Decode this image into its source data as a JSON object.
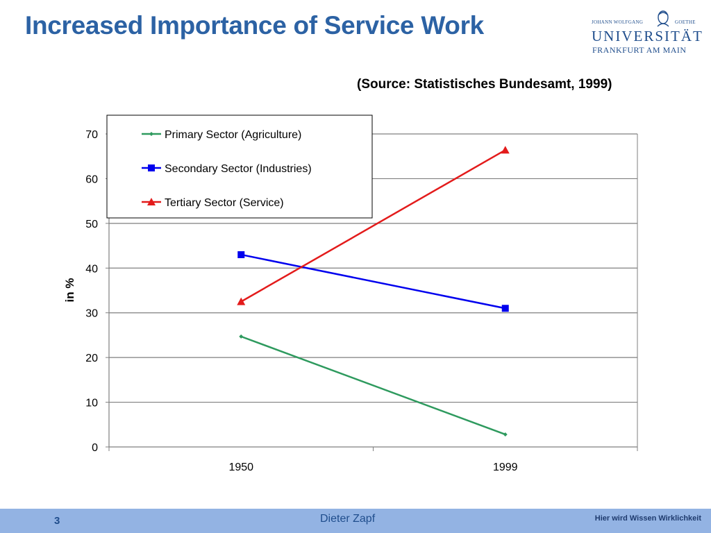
{
  "slide": {
    "title": "Increased Importance of Service Work",
    "source": "(Source: Statistisches Bundesamt, 1999)"
  },
  "logo": {
    "line1_left": "JOHANN WOLFGANG",
    "line1_right": "GOETHE",
    "line2": "UNIVERSITÄT",
    "line3": "FRANKFURT AM MAIN"
  },
  "footer": {
    "page_number": "3",
    "author": "Dieter Zapf",
    "slogan": "Hier wird Wissen Wirklichkeit"
  },
  "chart_data": {
    "type": "line",
    "categories": [
      "1950",
      "1999"
    ],
    "series": [
      {
        "name": "Primary Sector (Agriculture)",
        "values": [
          24.7,
          2.8
        ],
        "color": "#2e9a5e",
        "marker": "diamond"
      },
      {
        "name": "Secondary Sector (Industries)",
        "values": [
          43.0,
          31.0
        ],
        "color": "#0000ee",
        "marker": "square"
      },
      {
        "name": "Tertiary Sector (Service)",
        "values": [
          32.5,
          66.4
        ],
        "color": "#e31b1b",
        "marker": "triangle"
      }
    ],
    "ylabel": "in %",
    "xlabel": "",
    "ylim": [
      0,
      70
    ],
    "yticks": [
      0,
      10,
      20,
      30,
      40,
      50,
      60,
      70
    ],
    "grid": true,
    "legend_position": "top-left"
  }
}
